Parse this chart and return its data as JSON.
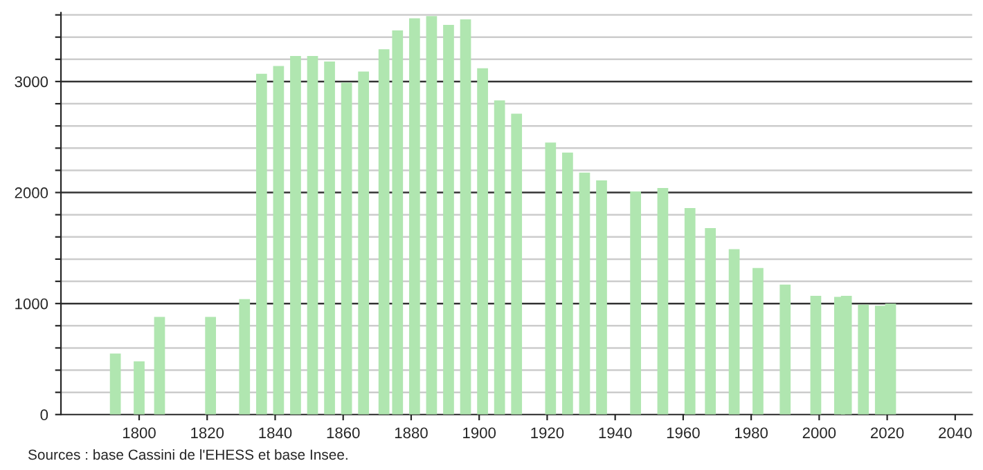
{
  "chart_data": {
    "type": "bar",
    "x": [
      1793,
      1800,
      1806,
      1821,
      1831,
      1836,
      1841,
      1846,
      1851,
      1856,
      1861,
      1866,
      1872,
      1876,
      1881,
      1886,
      1891,
      1896,
      1901,
      1906,
      1911,
      1921,
      1926,
      1931,
      1936,
      1946,
      1954,
      1962,
      1968,
      1975,
      1982,
      1990,
      1999,
      2006,
      2008,
      2013,
      2018,
      2021
    ],
    "values": [
      550,
      480,
      880,
      880,
      1040,
      3070,
      3140,
      3230,
      3230,
      3180,
      2990,
      3090,
      3290,
      3460,
      3570,
      3590,
      3510,
      3560,
      3120,
      2830,
      2710,
      2450,
      2360,
      2180,
      2110,
      2010,
      2040,
      1860,
      1680,
      1490,
      1320,
      1170,
      1070,
      1060,
      1070,
      990,
      980,
      1000
    ],
    "color": "#b0e6b0",
    "xlim": [
      1777,
      2045
    ],
    "xticks": [
      1800,
      1820,
      1840,
      1860,
      1880,
      1900,
      1920,
      1940,
      1960,
      1980,
      2000,
      2020,
      2040
    ],
    "ylim": [
      0,
      3620
    ],
    "yticks": [
      0,
      {
        "value": 200,
        "label": null
      },
      {
        "value": 400,
        "label": null
      },
      {
        "value": 600,
        "label": null
      },
      {
        "value": 800,
        "label": null
      },
      1000,
      {
        "value": 1200,
        "label": null
      },
      {
        "value": 1400,
        "label": null
      },
      {
        "value": 1600,
        "label": null
      },
      {
        "value": 1800,
        "label": null
      },
      2000,
      {
        "value": 2200,
        "label": null
      },
      {
        "value": 2400,
        "label": null
      },
      {
        "value": 2600,
        "label": null
      },
      {
        "value": 2800,
        "label": null
      },
      3000,
      {
        "value": 3200,
        "label": null
      },
      {
        "value": 3400,
        "label": null
      },
      {
        "value": 3600,
        "label": null
      }
    ],
    "grid": "y",
    "annotations": [
      "Sources : base Cassini de l'EHESS et base Insee."
    ]
  }
}
